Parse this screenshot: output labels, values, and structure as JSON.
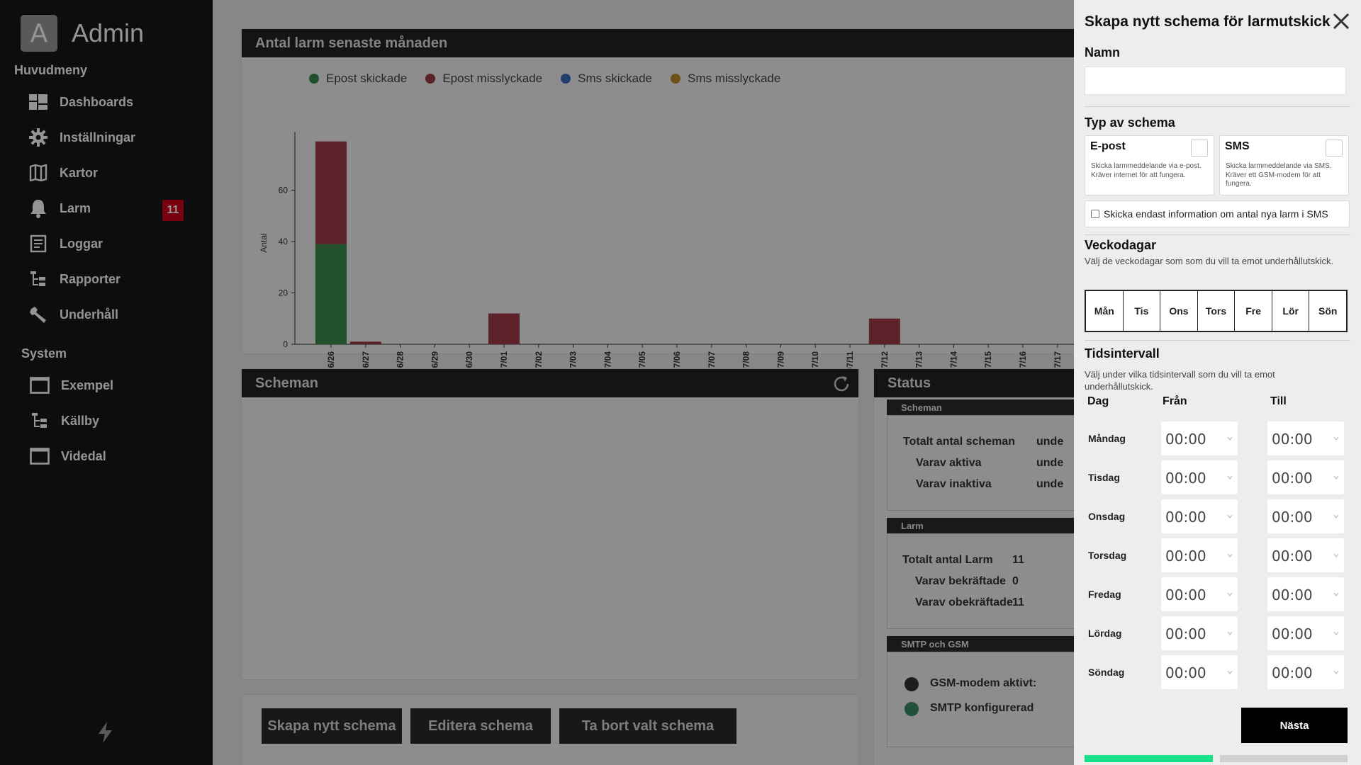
{
  "sidebar": {
    "brand_letter": "A",
    "brand_name": "Admin",
    "main_menu_title": "Huvudmeny",
    "main_items": [
      {
        "label": "Dashboards",
        "icon": "dashboard-icon"
      },
      {
        "label": "Inställningar",
        "icon": "gear-icon"
      },
      {
        "label": "Kartor",
        "icon": "map-icon"
      },
      {
        "label": "Larm",
        "icon": "bell-icon",
        "badge": "11"
      },
      {
        "label": "Loggar",
        "icon": "log-icon"
      },
      {
        "label": "Rapporter",
        "icon": "tree-icon"
      },
      {
        "label": "Underhåll",
        "icon": "wrench-icon"
      }
    ],
    "system_title": "System",
    "system_items": [
      {
        "label": "Exempel",
        "icon": "window-icon"
      },
      {
        "label": "Källby",
        "icon": "tree-icon"
      },
      {
        "label": "Videdal",
        "icon": "window-icon"
      }
    ],
    "footer_icon": "bolt-icon"
  },
  "chart_panel": {
    "title": "Antal larm senaste månaden",
    "legend": [
      {
        "label": "Epost skickade",
        "color": "#3a8a4f"
      },
      {
        "label": "Epost misslyckade",
        "color": "#a13a48"
      },
      {
        "label": "Sms skickade",
        "color": "#3a6fc0"
      },
      {
        "label": "Sms misslyckade",
        "color": "#c0882d"
      }
    ]
  },
  "chart_data": {
    "type": "bar",
    "stacked": true,
    "title": "",
    "ylabel": "Antal",
    "xlabel": "",
    "ylim": [
      0,
      80
    ],
    "yticks": [
      0,
      20,
      40,
      60
    ],
    "categories": [
      "06/26",
      "06/27",
      "06/28",
      "06/29",
      "06/30",
      "07/01",
      "07/02",
      "07/03",
      "07/04",
      "07/05",
      "07/06",
      "07/07",
      "07/08",
      "07/09",
      "07/10",
      "07/11",
      "07/12",
      "07/13",
      "07/14",
      "07/15",
      "07/16",
      "07/17"
    ],
    "series": [
      {
        "name": "Epost skickade",
        "color": "#3a8a4f",
        "values": [
          39,
          0,
          0,
          0,
          0,
          0,
          0,
          0,
          0,
          0,
          0,
          0,
          0,
          0,
          0,
          0,
          0,
          0,
          0,
          0,
          0,
          0
        ]
      },
      {
        "name": "Epost misslyckade",
        "color": "#a13a48",
        "values": [
          40,
          1,
          0,
          0,
          0,
          12,
          0,
          0,
          0,
          0,
          0,
          0,
          0,
          0,
          0,
          0,
          10,
          0,
          0,
          0,
          0,
          0
        ]
      },
      {
        "name": "Sms skickade",
        "color": "#3a6fc0",
        "values": [
          0,
          0,
          0,
          0,
          0,
          0,
          0,
          0,
          0,
          0,
          0,
          0,
          0,
          0,
          0,
          0,
          0,
          0,
          0,
          0,
          0,
          0
        ]
      },
      {
        "name": "Sms misslyckade",
        "color": "#c0882d",
        "values": [
          0,
          0,
          0,
          0,
          0,
          0,
          0,
          0,
          0,
          0,
          0,
          0,
          0,
          0,
          0,
          0,
          0,
          0,
          0,
          0,
          0,
          0
        ]
      }
    ]
  },
  "scheman_panel": {
    "title": "Scheman",
    "buttons": [
      "Skapa nytt schema",
      "Editera schema",
      "Ta bort valt schema"
    ]
  },
  "status_panel": {
    "title": "Status",
    "scheman": {
      "title": "Scheman",
      "rows": [
        {
          "label": "Totalt antal scheman",
          "value": "unde"
        },
        {
          "label": "Varav aktiva",
          "value": "unde"
        },
        {
          "label": "Varav inaktiva",
          "value": "unde"
        }
      ]
    },
    "larm": {
      "title": "Larm",
      "rows": [
        {
          "label": "Totalt antal Larm",
          "value": "11"
        },
        {
          "label": "Varav bekräftade",
          "value": "0"
        },
        {
          "label": "Varav obekräftade",
          "value": "11"
        }
      ]
    },
    "smtp": {
      "title": "SMTP och GSM",
      "rows": [
        {
          "label": "GSM-modem aktivt:",
          "color": "#333333"
        },
        {
          "label": "SMTP konfigurerad",
          "color": "#3a8a6a"
        }
      ]
    }
  },
  "drawer": {
    "title": "Skapa nytt schema för larmutskick",
    "name_label": "Namn",
    "name_value": "",
    "type_label": "Typ av schema",
    "types": [
      {
        "title": "E-post",
        "desc": "Skicka larmmeddelande via e-post. Kräver internet för att fungera."
      },
      {
        "title": "SMS",
        "desc": "Skicka larmmeddelande via SMS. Kräver ett GSM-modem för att fungera."
      }
    ],
    "sms_only_label": "Skicka endast information om antal nya larm i SMS",
    "weekdays_label": "Veckodagar",
    "weekdays_help": "Välj de veckodagar som som du vill ta emot underhållutskick.",
    "weekdays": [
      "Mån",
      "Tis",
      "Ons",
      "Tors",
      "Fre",
      "Lör",
      "Sön"
    ],
    "interval_label": "Tidsintervall",
    "interval_help": "Välj under vilka tidsintervall som du vill ta emot underhållutskick.",
    "col_day": "Dag",
    "col_from": "Från",
    "col_to": "Till",
    "rows": [
      {
        "day": "Måndag",
        "from": "00:00",
        "to": "00:00"
      },
      {
        "day": "Tisdag",
        "from": "00:00",
        "to": "00:00"
      },
      {
        "day": "Onsdag",
        "from": "00:00",
        "to": "00:00"
      },
      {
        "day": "Torsdag",
        "from": "00:00",
        "to": "00:00"
      },
      {
        "day": "Fredag",
        "from": "00:00",
        "to": "00:00"
      },
      {
        "day": "Lördag",
        "from": "00:00",
        "to": "00:00"
      },
      {
        "day": "Söndag",
        "from": "00:00",
        "to": "00:00"
      }
    ],
    "next_label": "Nästa",
    "progress_step": 1,
    "progress_total": 2
  }
}
